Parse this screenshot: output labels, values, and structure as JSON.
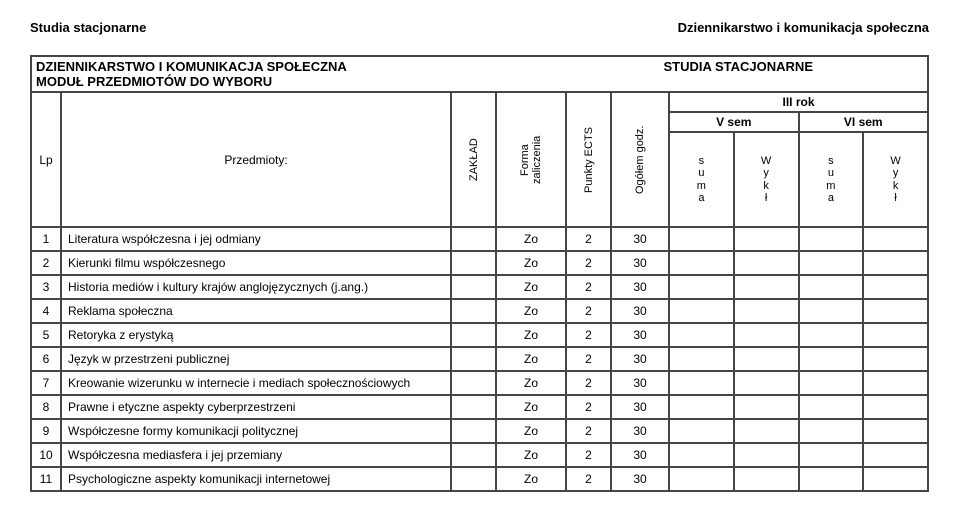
{
  "top": {
    "left": "Studia stacjonarne",
    "right": "Dziennikarstwo i komunikacja społeczna"
  },
  "titles": {
    "main": "DZIENNIKARSTWO I KOMUNIKACJA SPOŁECZNA",
    "mode": "STUDIA STACJONARNE",
    "sub": "MODUŁ PRZEDMIOTÓW DO WYBORU"
  },
  "headers": {
    "lp": "Lp",
    "subject": "Przedmioty:",
    "zaklad": "ZAKŁAD",
    "forma": "Forma zaliczenia",
    "ects": "Punkty ECTS",
    "godz": "Ogółem godz.",
    "rok": "III rok",
    "sem_v": "V sem",
    "sem_vi": "VI sem",
    "suma": "s\nu\nm\na",
    "wykl": "W\ny\nk\nł"
  },
  "rows": [
    {
      "lp": "1",
      "subject": "Literatura współczesna i jej odmiany",
      "forma": "Zo",
      "ects": "2",
      "godz": "30"
    },
    {
      "lp": "2",
      "subject": "Kierunki filmu współczesnego",
      "forma": "Zo",
      "ects": "2",
      "godz": "30"
    },
    {
      "lp": "3",
      "subject": "Historia mediów i kultury krajów anglojęzycznych (j.ang.)",
      "forma": "Zo",
      "ects": "2",
      "godz": "30"
    },
    {
      "lp": "4",
      "subject": "Reklama społeczna",
      "forma": "Zo",
      "ects": "2",
      "godz": "30"
    },
    {
      "lp": "5",
      "subject": "Retoryka z erystyką",
      "forma": "Zo",
      "ects": "2",
      "godz": "30"
    },
    {
      "lp": "6",
      "subject": "Język w przestrzeni publicznej",
      "forma": "Zo",
      "ects": "2",
      "godz": "30"
    },
    {
      "lp": "7",
      "subject": "Kreowanie wizerunku w internecie i mediach społecznościowych",
      "forma": "Zo",
      "ects": "2",
      "godz": "30"
    },
    {
      "lp": "8",
      "subject": "Prawne i etyczne aspekty cyberprzestrzeni",
      "forma": "Zo",
      "ects": "2",
      "godz": "30"
    },
    {
      "lp": "9",
      "subject": "Współczesne formy komunikacji politycznej",
      "forma": "Zo",
      "ects": "2",
      "godz": "30"
    },
    {
      "lp": "10",
      "subject": "Współczesna mediasfera i jej przemiany",
      "forma": "Zo",
      "ects": "2",
      "godz": "30"
    },
    {
      "lp": "11",
      "subject": "Psychologiczne aspekty komunikacji internetowej",
      "forma": "Zo",
      "ects": "2",
      "godz": "30"
    }
  ],
  "style": {
    "border_color": "#454545",
    "bg": "#ffffff",
    "text": "#000000"
  }
}
